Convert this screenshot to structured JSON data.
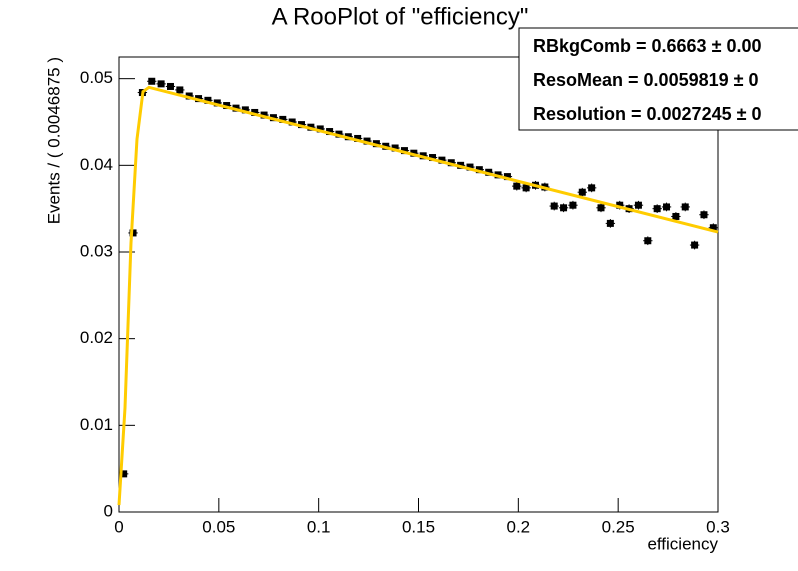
{
  "chart_data": {
    "type": "errorbar",
    "title": "A RooPlot of \"efficiency\"",
    "x_label": "efficiency",
    "y_label": "Events / ( 0.0046875 )",
    "xlim": [
      0,
      0.3
    ],
    "xticks": [
      0,
      0.05,
      0.1,
      0.15,
      0.2,
      0.25,
      0.3
    ],
    "ylim": [
      0,
      0.0525
    ],
    "yticks": [
      0,
      0.01,
      0.02,
      0.03,
      0.04,
      0.05
    ],
    "grid": false,
    "data": {
      "color": "#000000",
      "x": [
        0.00234375,
        0.00703125,
        0.01171875,
        0.01640625,
        0.02109375,
        0.02578125,
        0.03046875,
        0.03515625,
        0.03984375,
        0.04453125,
        0.04921875,
        0.05390625,
        0.05859375,
        0.06328125,
        0.06796875,
        0.07265625,
        0.07734375,
        0.08203125,
        0.08671875,
        0.09140625,
        0.09609375,
        0.10078125,
        0.10546875,
        0.11015625,
        0.11484375,
        0.11953125,
        0.12421875,
        0.12890625,
        0.13359375,
        0.13828125,
        0.14296875,
        0.14765625,
        0.15234375,
        0.15703125,
        0.16171875,
        0.16640625,
        0.17109375,
        0.17578125,
        0.18046875,
        0.18515625,
        0.18984375,
        0.19453125,
        0.19921875,
        0.20390625,
        0.20859375,
        0.21328125,
        0.21796875,
        0.22265625,
        0.22734375,
        0.23203125,
        0.23671875,
        0.24140625,
        0.24609375,
        0.25078125,
        0.25546875,
        0.26015625,
        0.26484375,
        0.26953125,
        0.27421875,
        0.27890625,
        0.28359375,
        0.28828125,
        0.29296875,
        0.29765625
      ],
      "values": [
        0.0044,
        0.0322,
        0.0484,
        0.0497,
        0.0494,
        0.0491,
        0.0487,
        0.048,
        0.0477,
        0.0475,
        0.0472,
        0.0469,
        0.0466,
        0.0464,
        0.0461,
        0.0458,
        0.0455,
        0.0453,
        0.045,
        0.0447,
        0.0444,
        0.0442,
        0.0439,
        0.0436,
        0.0433,
        0.0431,
        0.0428,
        0.0425,
        0.0422,
        0.042,
        0.0417,
        0.0414,
        0.0411,
        0.0409,
        0.0406,
        0.0403,
        0.04,
        0.0398,
        0.0395,
        0.0392,
        0.0389,
        0.0387,
        0.0376,
        0.0374,
        0.0377,
        0.0375,
        0.0353,
        0.0351,
        0.0354,
        0.0369,
        0.0374,
        0.0351,
        0.0333,
        0.0354,
        0.035,
        0.0354,
        0.0313,
        0.035,
        0.0352,
        0.0341,
        0.0352,
        0.0308,
        0.0343,
        0.0328
      ],
      "errors": [
        0.0002,
        0.0002,
        0.0002,
        0.0002,
        0.0002,
        0.0002,
        0.0002,
        0.0002,
        0.0002,
        0.0002,
        0.0002,
        0.0002,
        0.0002,
        0.0002,
        0.0002,
        0.0002,
        0.0002,
        0.0002,
        0.0002,
        0.0002,
        0.0002,
        0.0002,
        0.0002,
        0.0002,
        0.0002,
        0.0002,
        0.0002,
        0.0002,
        0.0002,
        0.0002,
        0.0002,
        0.0003,
        0.0003,
        0.0003,
        0.0003,
        0.0003,
        0.0003,
        0.0003,
        0.0003,
        0.0003,
        0.0003,
        0.0003,
        0.0005,
        0.0005,
        0.0005,
        0.0005,
        0.0005,
        0.0005,
        0.0005,
        0.0005,
        0.0005,
        0.0005,
        0.0005,
        0.0005,
        0.0005,
        0.0005,
        0.0005,
        0.0005,
        0.0005,
        0.0005,
        0.0005,
        0.0005,
        0.0005,
        0.0005
      ]
    },
    "fit": {
      "color": "#ffcc00",
      "x": [
        0,
        0.003,
        0.006,
        0.009,
        0.012,
        0.015,
        0.3
      ],
      "values": [
        0.0008,
        0.012,
        0.031,
        0.043,
        0.0485,
        0.049,
        0.0323
      ]
    },
    "annotations": [
      "RBkgComb =  0.6663 ± 0.00",
      "ResoMean =  0.0059819 ± 0",
      "Resolution =  0.0027245 ± 0"
    ]
  }
}
